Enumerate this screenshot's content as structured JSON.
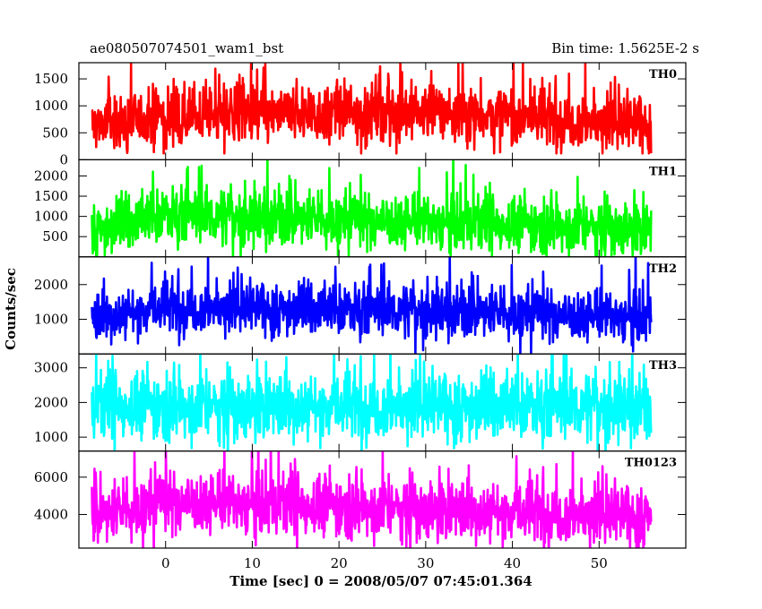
{
  "header": {
    "file_label": "ae080507074501_wam1_bst",
    "bin_time": "Bin time: 1.5625E-2 s"
  },
  "chart_data": {
    "type": "line",
    "xlabel": "Time [sec] 0 = 2008/05/07 07:45:01.364",
    "ylabel": "Counts/sec",
    "xlim": [
      -10,
      60
    ],
    "x_ticks": [
      0,
      10,
      20,
      30,
      40,
      50
    ],
    "x_range_data": [
      -8.5,
      56
    ],
    "grid": false,
    "panels": [
      {
        "name": "TH0",
        "color": "#ff0000",
        "ylim": [
          0,
          1800
        ],
        "yticks": [
          0,
          500,
          1000,
          1500
        ],
        "baseline": 750,
        "noise": 260,
        "band_low": 250,
        "band_high": 1550,
        "segments": [
          [
            -8.5,
            650
          ],
          [
            0,
            800
          ],
          [
            31,
            900
          ],
          [
            56,
            650
          ]
        ]
      },
      {
        "name": "TH1",
        "color": "#00ff00",
        "ylim": [
          0,
          2400
        ],
        "yticks": [
          500,
          1000,
          1500,
          2000
        ],
        "baseline": 750,
        "noise": 330,
        "band_low": 200,
        "band_high": 2350,
        "segments": [
          [
            -8.5,
            650
          ],
          [
            0,
            1050
          ],
          [
            32,
            850
          ],
          [
            56,
            700
          ]
        ]
      },
      {
        "name": "TH2",
        "color": "#0000ff",
        "ylim": [
          0,
          2800
        ],
        "yticks": [
          1000,
          2000
        ],
        "baseline": 1200,
        "noise": 360,
        "band_low": 200,
        "band_high": 2800,
        "segments": [
          [
            -8.5,
            1050
          ],
          [
            0,
            1350
          ],
          [
            32,
            1250
          ],
          [
            56,
            1050
          ]
        ]
      },
      {
        "name": "TH3",
        "color": "#00ffff",
        "ylim": [
          600,
          3400
        ],
        "yticks": [
          1000,
          2000,
          3000
        ],
        "baseline": 1900,
        "noise": 470,
        "band_low": 600,
        "band_high": 3400,
        "segments": [
          [
            -8.5,
            1900
          ],
          [
            56,
            1900
          ]
        ]
      },
      {
        "name": "TH0123",
        "color": "#ff00ff",
        "ylim": [
          2200,
          7400
        ],
        "yticks": [
          4000,
          6000
        ],
        "baseline": 4300,
        "noise": 800,
        "band_low": 2200,
        "band_high": 7400,
        "segments": [
          [
            -8.5,
            3900
          ],
          [
            0,
            4700
          ],
          [
            31,
            4300
          ],
          [
            56,
            3900
          ]
        ]
      }
    ]
  }
}
